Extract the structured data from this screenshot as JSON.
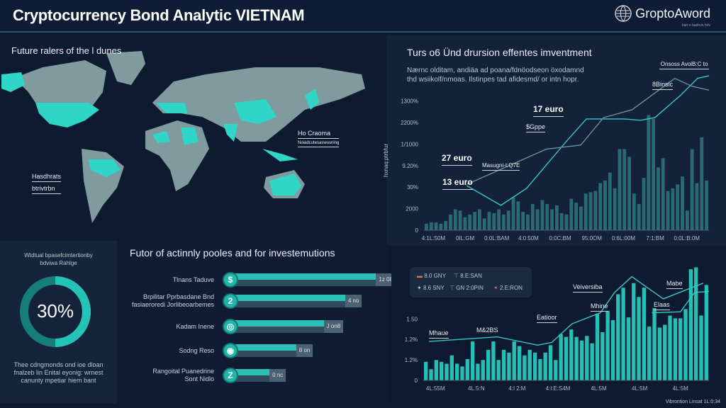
{
  "header": {
    "title": "Cryptocurrency Bond Analytic VIETNAM",
    "logo_name": "GroptoAword",
    "logo_sub": "bart e badrvin hrlv"
  },
  "map": {
    "title": "Future ralers of the l dunes",
    "labels": [
      {
        "text": "Hasdhrats",
        "sub": "btrivtrbn"
      },
      {
        "text": "Ho Craoma",
        "sub": "Noiadcutesaswusning"
      }
    ],
    "colors": {
      "land": "#7f9b9d",
      "highlight": "#2fd6c8"
    }
  },
  "chart_data": [
    {
      "type": "bar",
      "title": "Turs o6 Ünd drursion effentes imventment",
      "subtitle": [
        "Nærnc olditam, andiäa ad poana/fdnöodseon öxodamnd",
        "thd wsiikolf/nmoas. Ilstinpes tad afidesmd/ or intn hopr."
      ],
      "ylabel": "hxnaq:ptrbfur",
      "ylim": [
        0,
        125
      ],
      "ytick_labels": [
        "0",
        "2000",
        "30%",
        "9.20%",
        "1/1000",
        "2200%",
        "1300%"
      ],
      "xtick_labels": [
        "4:1L:50M",
        "0IL:GM",
        "0:0L:BAM",
        "4:0:50M",
        "0:0C:BM",
        "95:0OM",
        "0:6L:00M",
        "7:1:BM",
        "0:0L:B:0M"
      ],
      "values": [
        5,
        6,
        6,
        5,
        7,
        12,
        16,
        15,
        10,
        12,
        14,
        16,
        9,
        14,
        13,
        16,
        12,
        15,
        25,
        22,
        14,
        12,
        20,
        16,
        23,
        20,
        16,
        19,
        13,
        12,
        24,
        21,
        18,
        28,
        29,
        30,
        36,
        38,
        44,
        32,
        62,
        62,
        56,
        28,
        20,
        40,
        88,
        85,
        48,
        55,
        30,
        32,
        35,
        41,
        15,
        62,
        36,
        71,
        38
      ],
      "series": [
        {
          "name": "line-primary",
          "x": [
            0.15,
            0.27,
            0.36,
            0.5,
            0.57,
            0.7,
            0.76,
            0.81,
            0.9,
            0.96,
            1.0
          ],
          "y": [
            34,
            19,
            32,
            68,
            85,
            85,
            84,
            86,
            103,
            116,
            118
          ]
        },
        {
          "name": "line-secondary",
          "x": [
            0.15,
            0.43,
            0.55,
            0.63,
            0.73,
            0.88,
            0.94,
            1.0
          ],
          "y": [
            35,
            62,
            65,
            86,
            92,
            116,
            110,
            107
          ]
        }
      ],
      "annotations": [
        "Onsoss AvoiB:C to",
        "8Binsic",
        "17 euro",
        "$Gppe",
        "27 euro",
        "Masugni-t:Q7E",
        "13 euro"
      ]
    },
    {
      "type": "bar",
      "ylim": [
        0,
        130
      ],
      "ytick_labels": [
        "0",
        "1.2%",
        "1.2%",
        "1.50"
      ],
      "xtick_labels": [
        "4L:55M",
        "4L:5:N",
        "4:l 2:M",
        "4:l:E:S4M",
        "4L:5M",
        "4L:5M",
        "4L:5M"
      ],
      "values": [
        20,
        12,
        22,
        20,
        18,
        27,
        18,
        15,
        23,
        42,
        18,
        22,
        33,
        42,
        22,
        33,
        30,
        42,
        37,
        27,
        33,
        30,
        23,
        30,
        38,
        22,
        50,
        47,
        55,
        47,
        43,
        48,
        40,
        72,
        52,
        75,
        65,
        93,
        100,
        68,
        105,
        90,
        100,
        58,
        78,
        57,
        60,
        70,
        67,
        67,
        77,
        120,
        122,
        70,
        103
      ],
      "series": [
        {
          "name": "line-primary",
          "x": [
            0.02,
            0.26,
            0.4,
            0.45,
            0.52,
            0.62,
            0.67,
            0.73,
            0.84,
            0.98
          ],
          "y": [
            42,
            47,
            38,
            41,
            61,
            73,
            95,
            112,
            88,
            105
          ]
        },
        {
          "name": "line-secondary",
          "x": [
            0.8,
            0.9,
            0.95,
            1.0
          ],
          "y": [
            73,
            74,
            95,
            96
          ]
        }
      ],
      "legend": [
        "8.0 GNY",
        "8.E:SAN",
        "8.6 SNY",
        "GN 2:0PIN",
        "2.E:RON"
      ],
      "annotations": [
        "Mhaue",
        "M&2BS",
        "Eatioor",
        "Mhine",
        "Veiversiba",
        "Mabe",
        "Elaas"
      ],
      "footer": "Vibrontion Linsat 1L:0:34"
    }
  ],
  "donut": {
    "heading": [
      "Wtdtual bpasefcimtertionby",
      "bdviwa Rahlge"
    ],
    "value_text": "30%",
    "value": 30,
    "caption": [
      "Thee cdngmonds ond ioe dloan",
      "fnalzeb lin Enital eyonig: wrnest",
      "canunty mpetiar hiem bant"
    ]
  },
  "bars": {
    "title": "Futor of actinnly pooles and for investemutions",
    "rows": [
      {
        "label": [
          "Tlnans Taduve"
        ],
        "icon": "$",
        "value_text": "1z 08",
        "value": 100
      },
      {
        "label": [
          "Brpilitar Pprbasdane Bnd",
          "fasiaeroredi Jorlibeoarbemes"
        ],
        "icon": "2",
        "value_text": "4 no",
        "value": 80
      },
      {
        "label": [
          "Kadam Inene"
        ],
        "icon": "◎",
        "value_text": "J on8",
        "value": 69
      },
      {
        "label": [
          "Sodng Reso"
        ],
        "icon": "◉",
        "value_text": "8 on",
        "value": 51
      },
      {
        "label": [
          "Rangoital Puanedrine",
          "Sont Nidlo"
        ],
        "icon": "Z",
        "value_text": "0 nc",
        "value": 35
      }
    ]
  }
}
